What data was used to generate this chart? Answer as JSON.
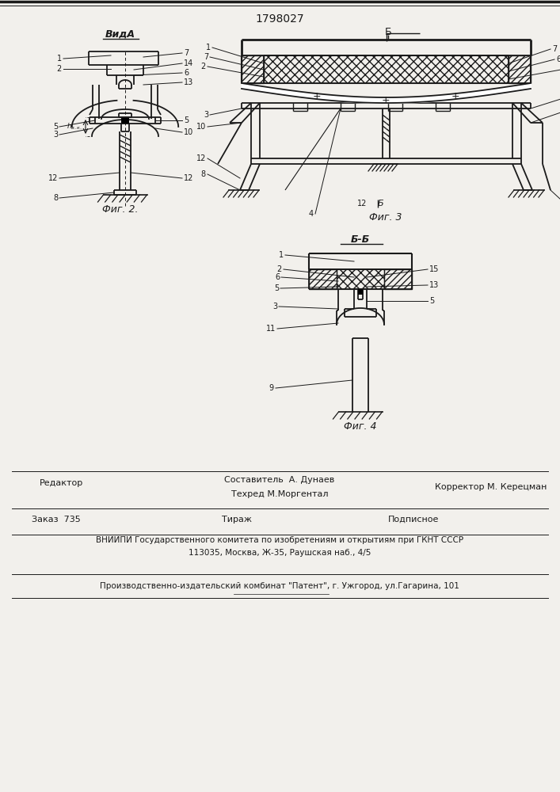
{
  "patent_number": "1798027",
  "fig2_title": "ВидА",
  "fig2_label": "Фиг. 2.",
  "fig3_label": "Фиг. 3",
  "fig3_section": "Б",
  "fig4_title": "Б-Б",
  "fig4_label": "Фиг. 4",
  "footer_editor": "Редактор",
  "footer_comp": "Составитель  А. Дунаев",
  "footer_tech": "Техред М.Моргентал",
  "footer_corr": "Корректор М. Керецман",
  "footer_order": "Заказ  735",
  "footer_print": "Тираж",
  "footer_sub": "Подписное",
  "footer_vniip": "ВНИИПИ Государственного комитета по изобретениям и открытиям при ГКНТ СССР",
  "footer_addr": "113035, Москва, Ж-35, Раушская наб., 4/5",
  "footer_prod": "Производственно-издательский комбинат \"Патент\", г. Ужгород, ул.Гагарина, 101",
  "bg_color": "#f2f0ec",
  "line_color": "#1a1a1a"
}
